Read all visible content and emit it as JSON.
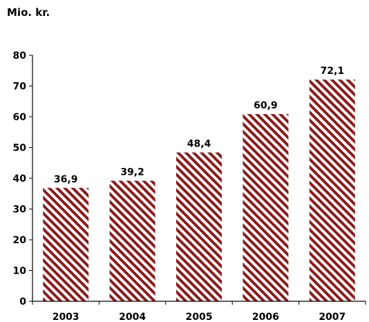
{
  "chart_data": {
    "type": "bar",
    "unit_label": "Mio. kr.",
    "categories": [
      "2003",
      "2004",
      "2005",
      "2006",
      "2007"
    ],
    "values": [
      36.9,
      39.2,
      48.4,
      60.9,
      72.1
    ],
    "value_labels": [
      "36,9",
      "39,2",
      "48,4",
      "60,9",
      "72,1"
    ],
    "ylim": [
      0,
      80
    ],
    "yticks": [
      0,
      10,
      20,
      30,
      40,
      50,
      60,
      70,
      80
    ],
    "bar_color": "#8b1a1a",
    "grid": false,
    "bar_fill": "diagonal-hatch"
  }
}
